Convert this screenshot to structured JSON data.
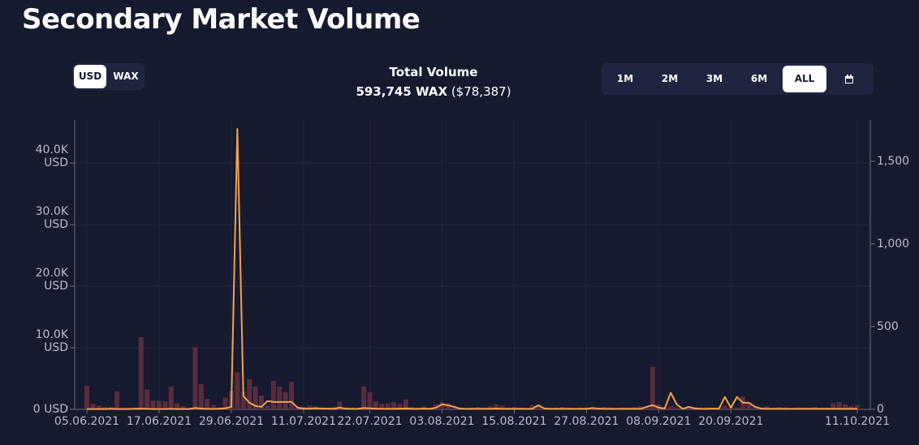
{
  "header": {
    "title": "Secondary Market Volume"
  },
  "currency_toggle": [
    "USD",
    "WAX"
  ],
  "total": {
    "label": "Total Volume",
    "wax": "593,745 WAX",
    "usd": "($78,387)"
  },
  "ranges": [
    "1M",
    "2M",
    "3M",
    "6M",
    "ALL"
  ],
  "chart_data": {
    "type": "bar-line",
    "categories": [
      "05.06.2021",
      null,
      null,
      null,
      null,
      null,
      null,
      null,
      null,
      null,
      null,
      null,
      "17.06.2021",
      null,
      null,
      null,
      null,
      null,
      null,
      null,
      null,
      null,
      null,
      null,
      "29.06.2021",
      null,
      null,
      null,
      null,
      null,
      null,
      null,
      null,
      null,
      null,
      null,
      "11.07.2021",
      null,
      null,
      null,
      null,
      null,
      null,
      null,
      null,
      null,
      null,
      "22.07.2021",
      null,
      null,
      null,
      null,
      null,
      null,
      null,
      null,
      null,
      null,
      null,
      "03.08.2021",
      null,
      null,
      null,
      null,
      null,
      null,
      null,
      null,
      null,
      null,
      null,
      "15.08.2021",
      null,
      null,
      null,
      null,
      null,
      null,
      null,
      null,
      null,
      null,
      null,
      "27.08.2021",
      null,
      null,
      null,
      null,
      null,
      null,
      null,
      null,
      null,
      null,
      null,
      "08.09.2021",
      null,
      null,
      null,
      null,
      null,
      null,
      null,
      null,
      null,
      null,
      null,
      "20.09.2021",
      null,
      null,
      null,
      null,
      null,
      null,
      null,
      null,
      null,
      null,
      null,
      null,
      null,
      null,
      null,
      null,
      null,
      null,
      null,
      null,
      "11.10.2021"
    ],
    "series": [
      {
        "color": "#5a2c3e",
        "values": [
          3800,
          900,
          600,
          400,
          400,
          2900,
          300,
          300,
          300,
          11700,
          3200,
          1400,
          1400,
          1300,
          3700,
          1000,
          500,
          300,
          10100,
          4100,
          1700,
          700,
          300,
          1900,
          3000,
          6000,
          2900,
          4900,
          3700,
          2200,
          600,
          4600,
          3700,
          2800,
          4500,
          500,
          400,
          600,
          500,
          300,
          300,
          400,
          1200,
          300,
          300,
          200,
          3700,
          2800,
          1300,
          900,
          1000,
          1200,
          900,
          1600,
          400,
          300,
          500,
          300,
          800,
          1200,
          900,
          600,
          300,
          200,
          300,
          400,
          300,
          500,
          800,
          600,
          300,
          400,
          300,
          200,
          700,
          600,
          300,
          200,
          300,
          400,
          300,
          200,
          300,
          300,
          200,
          300,
          400,
          300,
          200,
          300,
          300,
          400,
          500,
          300,
          6900,
          800,
          400,
          500,
          300,
          200,
          300,
          400,
          300,
          300,
          200,
          300,
          600,
          400,
          300,
          2100,
          1000,
          400,
          300,
          500,
          300,
          400,
          300,
          200,
          300,
          300,
          300,
          400,
          300,
          300,
          1000,
          1200,
          800,
          500,
          700
        ]
      },
      {
        "color": "#f5a04a",
        "axis": "y2",
        "values": [
          2,
          2,
          2,
          2,
          3,
          2,
          2,
          2,
          3,
          4,
          3,
          2,
          2,
          2,
          3,
          2,
          2,
          2,
          8,
          5,
          3,
          2,
          4,
          6,
          15,
          1696,
          80,
          40,
          20,
          15,
          50,
          45,
          45,
          45,
          45,
          10,
          5,
          4,
          6,
          5,
          4,
          3,
          10,
          4,
          3,
          3,
          8,
          6,
          4,
          3,
          3,
          3,
          4,
          5,
          3,
          3,
          4,
          3,
          10,
          30,
          25,
          15,
          4,
          3,
          3,
          3,
          3,
          3,
          5,
          3,
          3,
          3,
          3,
          3,
          3,
          25,
          5,
          3,
          3,
          3,
          3,
          3,
          3,
          3,
          8,
          4,
          3,
          3,
          3,
          3,
          3,
          3,
          3,
          15,
          25,
          10,
          5,
          100,
          30,
          3,
          15,
          5,
          3,
          3,
          5,
          3,
          75,
          10,
          75,
          40,
          40,
          15,
          5,
          3,
          3,
          3,
          3,
          3,
          3,
          3,
          3,
          3,
          3,
          3,
          3,
          3,
          3,
          3,
          3
        ]
      }
    ],
    "ylim": [
      0,
      47000
    ],
    "yticks": [
      {
        "value": 0,
        "label": "0 USD"
      },
      {
        "value": 10000,
        "label": "10.0K USD"
      },
      {
        "value": 20000,
        "label": "20.0K USD"
      },
      {
        "value": 30000,
        "label": "30.0K USD"
      },
      {
        "value": 40000,
        "label": "40.0K USD"
      }
    ],
    "y2lim": [
      0,
      1750
    ],
    "y2ticks": [
      0,
      500,
      {
        "value": 1000,
        "label": "1,000"
      },
      {
        "value": 1500,
        "label": "1,500"
      }
    ],
    "grid": true
  }
}
